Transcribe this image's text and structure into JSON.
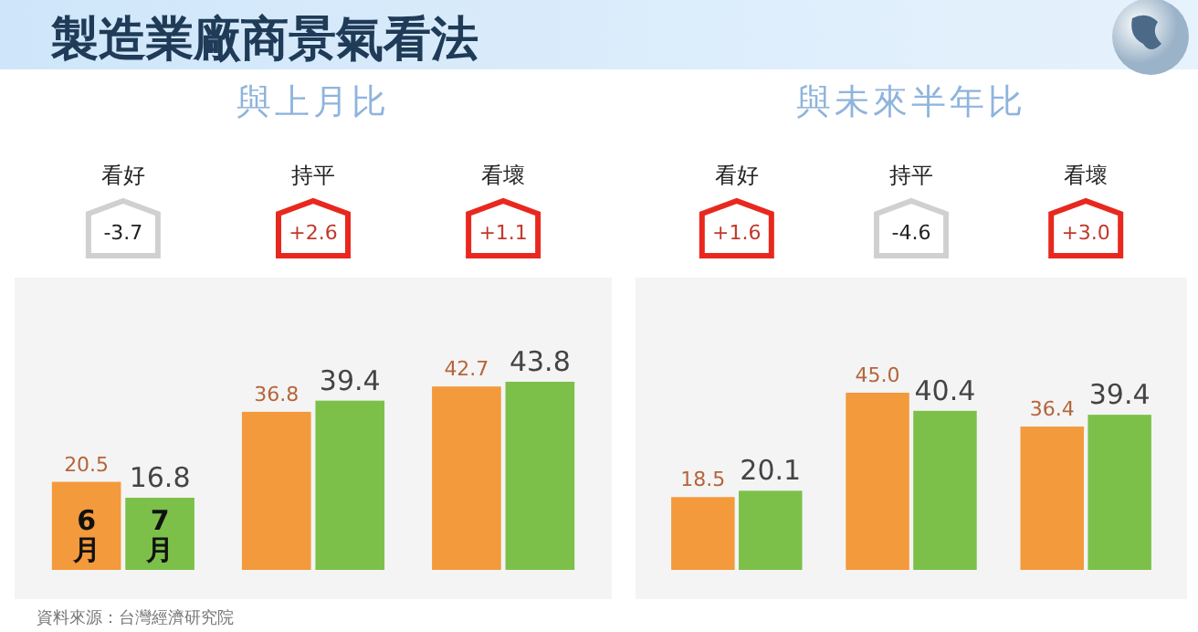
{
  "chart_data": [
    {
      "type": "bar",
      "title": "製造業廠商景氣看法",
      "subtitle": "與上月比",
      "categories": [
        "看好",
        "持平",
        "看壞"
      ],
      "series": [
        {
          "name": "6月",
          "color": "#f39a3c",
          "values": [
            20.5,
            36.8,
            42.7
          ],
          "value_labels": [
            "20.5",
            "36.8",
            "42.7"
          ]
        },
        {
          "name": "7月",
          "color": "#7cc04a",
          "values": [
            16.8,
            39.4,
            43.8
          ],
          "value_labels": [
            "16.8",
            "39.4",
            "43.8"
          ]
        }
      ],
      "annotations": [
        "-3.7",
        "+2.6",
        "+1.1",
        "資料來源：台灣經濟研究院"
      ]
    },
    {
      "type": "bar",
      "title": "與未來半年比",
      "categories": [
        "看好",
        "持平",
        "看壞"
      ],
      "series": [
        {
          "color": "#f39a3c",
          "values": [
            18.5,
            45.0,
            36.4
          ],
          "value_labels": [
            "18.5",
            "45.0",
            "36.4"
          ]
        },
        {
          "color": "#7cc04a",
          "values": [
            20.1,
            40.4,
            39.4
          ],
          "value_labels": [
            "20.1",
            "40.4",
            "39.4"
          ]
        }
      ],
      "annotations": [
        "+1.6",
        "-4.6",
        "+3.0"
      ]
    }
  ]
}
